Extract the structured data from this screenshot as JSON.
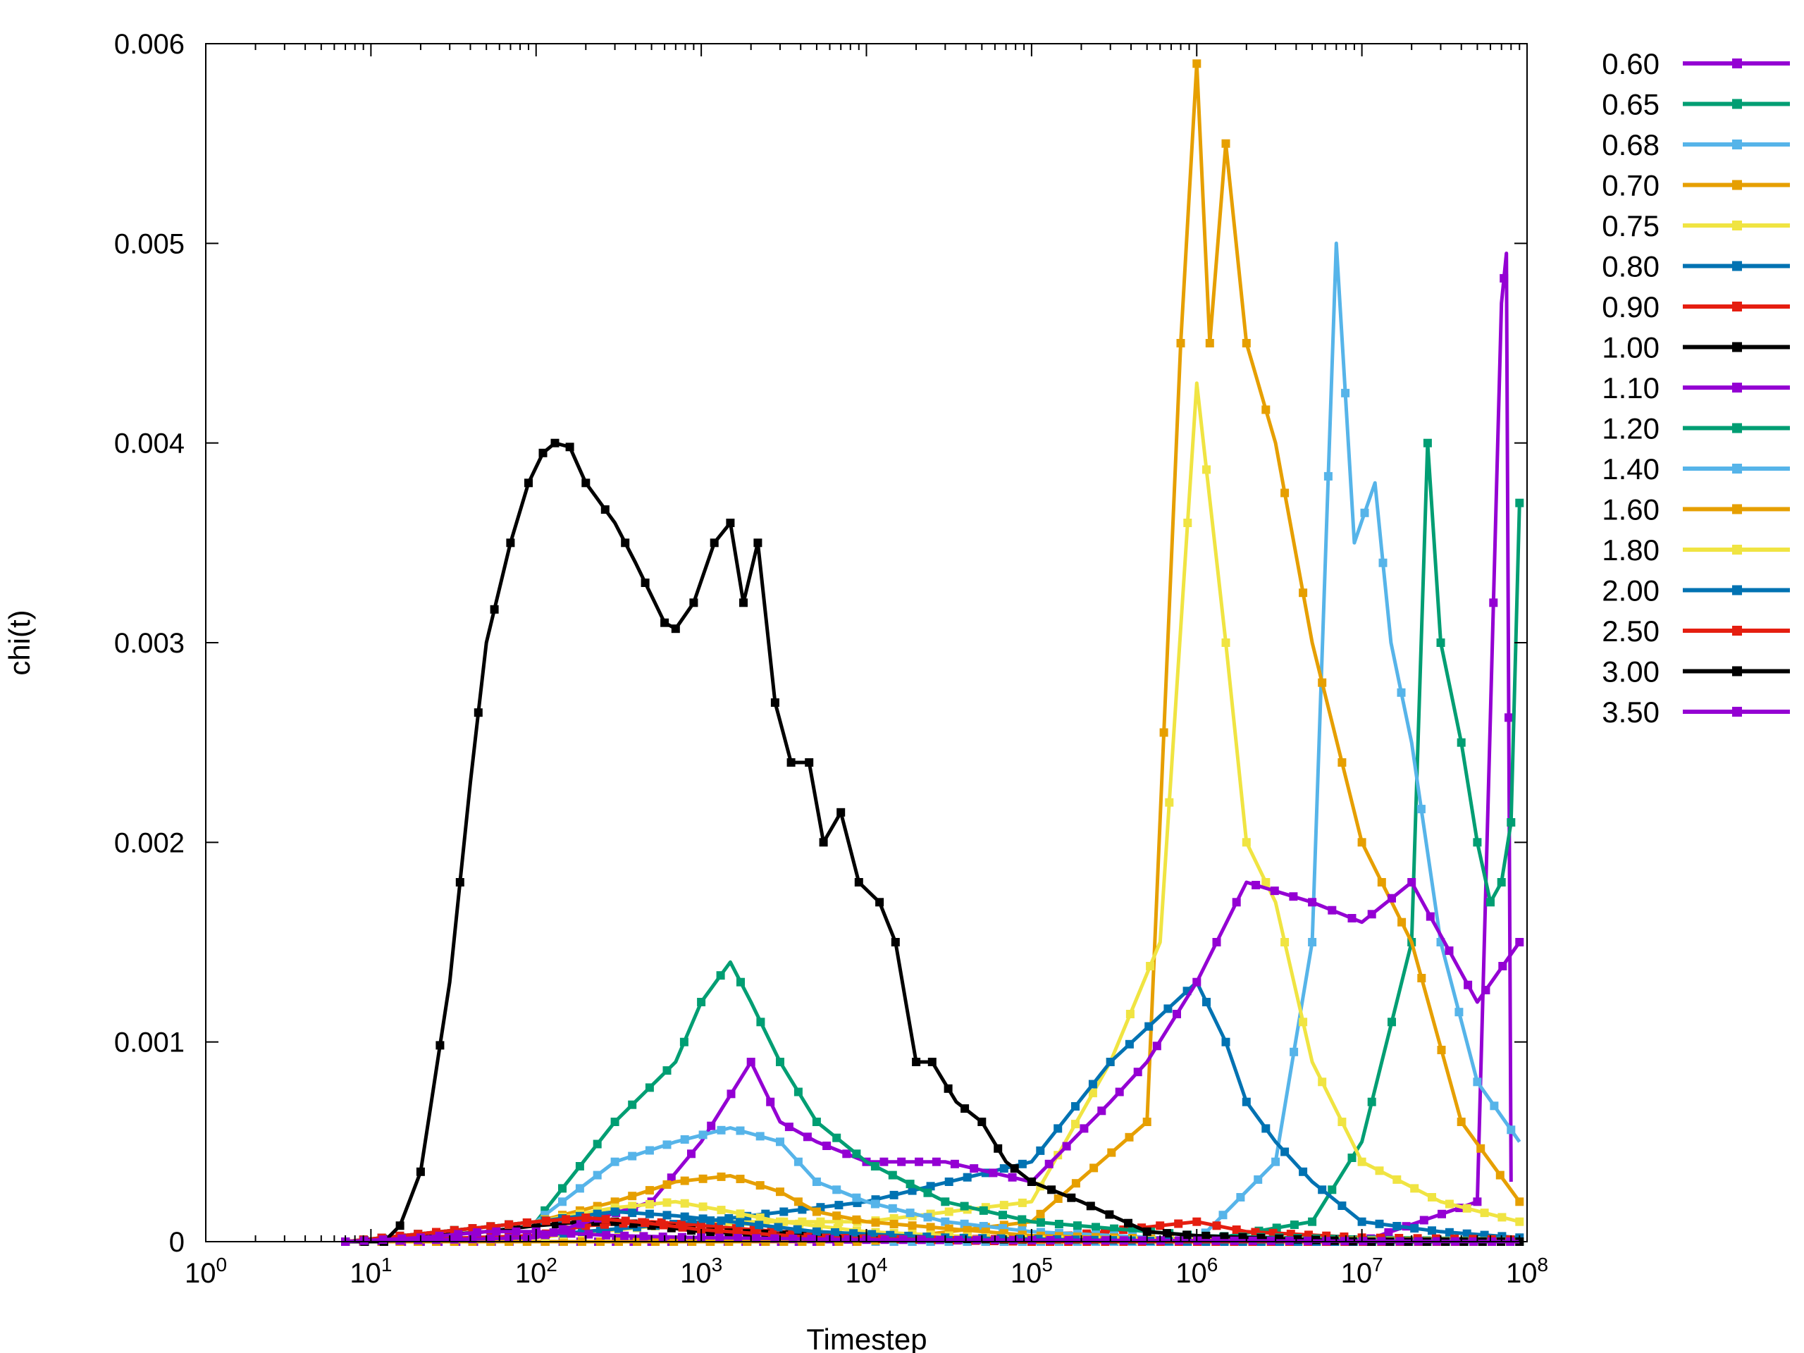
{
  "chart_data": {
    "type": "line",
    "xlabel": "Timestep",
    "ylabel": "chi(t)",
    "x_scale": "log",
    "xlim": [
      1,
      100000000
    ],
    "ylim": [
      0,
      0.006
    ],
    "x_ticks": [
      {
        "base": "10",
        "exp": "0"
      },
      {
        "base": "10",
        "exp": "1"
      },
      {
        "base": "10",
        "exp": "2"
      },
      {
        "base": "10",
        "exp": "3"
      },
      {
        "base": "10",
        "exp": "4"
      },
      {
        "base": "10",
        "exp": "5"
      },
      {
        "base": "10",
        "exp": "6"
      },
      {
        "base": "10",
        "exp": "7"
      },
      {
        "base": "10",
        "exp": "8"
      }
    ],
    "y_ticks": [
      "0",
      "0.001",
      "0.002",
      "0.003",
      "0.004",
      "0.005",
      "0.006"
    ],
    "grid": false,
    "legend_position": "outside-right",
    "series": [
      {
        "name": "0.60",
        "color": "#9400d3",
        "points": [
          [
            7,
            0
          ],
          [
            20,
            0
          ],
          [
            100,
            0
          ],
          [
            500,
            0
          ],
          [
            1000,
            0
          ],
          [
            5000,
            0
          ],
          [
            10000,
            0
          ],
          [
            100000,
            0
          ],
          [
            1000000,
            0
          ],
          [
            10000000,
            0
          ],
          [
            50000000,
            0.0002
          ],
          [
            70000000,
            0.0047
          ],
          [
            75000000,
            0.00495
          ],
          [
            80000000,
            0.0003
          ]
        ]
      },
      {
        "name": "0.65",
        "color": "#009e73",
        "points": [
          [
            7,
            0
          ],
          [
            100,
            0
          ],
          [
            1000,
            0
          ],
          [
            10000,
            0
          ],
          [
            100000,
            0
          ],
          [
            1000000,
            0
          ],
          [
            5000000,
            0.0001
          ],
          [
            10000000,
            0.0005
          ],
          [
            20000000,
            0.0015
          ],
          [
            25000000,
            0.004
          ],
          [
            30000000,
            0.003
          ],
          [
            40000000,
            0.0025
          ],
          [
            50000000,
            0.002
          ],
          [
            60000000,
            0.0017
          ],
          [
            70000000,
            0.0018
          ],
          [
            80000000,
            0.0021
          ],
          [
            90000000,
            0.0037
          ]
        ]
      },
      {
        "name": "0.68",
        "color": "#56b4e9",
        "points": [
          [
            7,
            0
          ],
          [
            100,
            0
          ],
          [
            1000,
            0
          ],
          [
            10000,
            0
          ],
          [
            100000,
            0
          ],
          [
            1000000,
            0
          ],
          [
            3000000,
            0.0004
          ],
          [
            5000000,
            0.0015
          ],
          [
            7000000,
            0.005
          ],
          [
            9000000,
            0.0035
          ],
          [
            12000000,
            0.0038
          ],
          [
            15000000,
            0.003
          ],
          [
            20000000,
            0.0025
          ],
          [
            30000000,
            0.0015
          ],
          [
            50000000,
            0.0008
          ],
          [
            90000000,
            0.0005
          ]
        ]
      },
      {
        "name": "0.70",
        "color": "#e69f00",
        "points": [
          [
            7,
            0
          ],
          [
            100,
            0
          ],
          [
            1000,
            0
          ],
          [
            10000,
            0
          ],
          [
            100000,
            0.0001
          ],
          [
            500000,
            0.0006
          ],
          [
            800000,
            0.0045
          ],
          [
            1000000,
            0.0059
          ],
          [
            1200000,
            0.0045
          ],
          [
            1500000,
            0.0055
          ],
          [
            2000000,
            0.0045
          ],
          [
            3000000,
            0.004
          ],
          [
            5000000,
            0.003
          ],
          [
            10000000,
            0.002
          ],
          [
            20000000,
            0.0015
          ],
          [
            40000000,
            0.0006
          ],
          [
            90000000,
            0.0002
          ]
        ]
      },
      {
        "name": "0.75",
        "color": "#f0e442",
        "points": [
          [
            7,
            0
          ],
          [
            100,
            2e-05
          ],
          [
            1000,
            0.0001
          ],
          [
            10000,
            0.0001
          ],
          [
            100000,
            0.0002
          ],
          [
            300000,
            0.0009
          ],
          [
            600000,
            0.0015
          ],
          [
            1000000,
            0.0043
          ],
          [
            1500000,
            0.003
          ],
          [
            2000000,
            0.002
          ],
          [
            3000000,
            0.0017
          ],
          [
            5000000,
            0.0009
          ],
          [
            10000000,
            0.0004
          ],
          [
            30000000,
            0.0002
          ],
          [
            90000000,
            0.0001
          ]
        ]
      },
      {
        "name": "0.80",
        "color": "#0072b2",
        "points": [
          [
            7,
            0
          ],
          [
            100,
            3e-05
          ],
          [
            1000,
            0.0001
          ],
          [
            10000,
            0.0002
          ],
          [
            100000,
            0.0004
          ],
          [
            300000,
            0.0009
          ],
          [
            1000000,
            0.0013
          ],
          [
            1500000,
            0.001
          ],
          [
            2000000,
            0.0007
          ],
          [
            3000000,
            0.0005
          ],
          [
            5000000,
            0.0003
          ],
          [
            10000000,
            0.0001
          ],
          [
            30000000,
            5e-05
          ],
          [
            90000000,
            2e-05
          ]
        ]
      },
      {
        "name": "0.90",
        "color": "#e51e10",
        "points": [
          [
            7,
            0
          ],
          [
            100,
            3e-05
          ],
          [
            200,
            8e-05
          ],
          [
            500,
            0.0001
          ],
          [
            1000,
            8e-05
          ],
          [
            3000,
            5e-05
          ],
          [
            10000,
            2e-05
          ],
          [
            100000,
            1e-05
          ],
          [
            1000000,
            0.0001
          ],
          [
            2000000,
            5e-05
          ],
          [
            10000000,
            2e-05
          ],
          [
            90000000,
            1e-05
          ]
        ]
      },
      {
        "name": "1.00",
        "color": "#000000",
        "points": [
          [
            7,
            0
          ],
          [
            50,
            5e-05
          ],
          [
            100,
            8e-05
          ],
          [
            200,
            0.0001
          ],
          [
            300,
            0.0001
          ],
          [
            500,
            8e-05
          ],
          [
            1000,
            5e-05
          ],
          [
            10000,
            2e-05
          ],
          [
            100000,
            1e-05
          ],
          [
            1000000,
            1e-05
          ],
          [
            10000000,
            0
          ],
          [
            90000000,
            0
          ]
        ]
      },
      {
        "name": "1.10",
        "color": "#9400d3",
        "points": [
          [
            7,
            0
          ],
          [
            100,
            2e-05
          ],
          [
            500,
            0.0002
          ],
          [
            1000,
            0.0005
          ],
          [
            2000,
            0.0009
          ],
          [
            3000,
            0.0006
          ],
          [
            5000,
            0.0005
          ],
          [
            10000,
            0.0004
          ],
          [
            30000,
            0.0004
          ],
          [
            100000,
            0.0003
          ],
          [
            300000,
            0.0007
          ],
          [
            500000,
            0.0009
          ],
          [
            1000000,
            0.0013
          ],
          [
            2000000,
            0.0018
          ],
          [
            5000000,
            0.0017
          ],
          [
            10000000,
            0.0016
          ],
          [
            20000000,
            0.0018
          ],
          [
            50000000,
            0.0012
          ],
          [
            90000000,
            0.0015
          ]
        ]
      },
      {
        "name": "1.20",
        "color": "#009e73",
        "points": [
          [
            7,
            0
          ],
          [
            100,
            0.0001
          ],
          [
            300,
            0.0006
          ],
          [
            700,
            0.0009
          ],
          [
            1000,
            0.0012
          ],
          [
            1500,
            0.0014
          ],
          [
            2000,
            0.0012
          ],
          [
            3000,
            0.0009
          ],
          [
            5000,
            0.0006
          ],
          [
            10000,
            0.0004
          ],
          [
            30000,
            0.0002
          ],
          [
            100000,
            0.0001
          ],
          [
            1000000,
            3e-05
          ],
          [
            10000000,
            1e-05
          ],
          [
            90000000,
            0
          ]
        ]
      },
      {
        "name": "1.40",
        "color": "#56b4e9",
        "points": [
          [
            7,
            0
          ],
          [
            100,
            0.0001
          ],
          [
            300,
            0.0004
          ],
          [
            700,
            0.0005
          ],
          [
            1500,
            0.00057
          ],
          [
            3000,
            0.0005
          ],
          [
            5000,
            0.0003
          ],
          [
            10000,
            0.0002
          ],
          [
            30000,
            0.0001
          ],
          [
            100000,
            5e-05
          ],
          [
            1000000,
            1e-05
          ],
          [
            90000000,
            0
          ]
        ]
      },
      {
        "name": "1.60",
        "color": "#e69f00",
        "points": [
          [
            7,
            0
          ],
          [
            100,
            0.0001
          ],
          [
            300,
            0.0002
          ],
          [
            700,
            0.0003
          ],
          [
            1500,
            0.00033
          ],
          [
            3000,
            0.00025
          ],
          [
            5000,
            0.00015
          ],
          [
            10000,
            0.0001
          ],
          [
            100000,
            3e-05
          ],
          [
            1000000,
            1e-05
          ],
          [
            90000000,
            0
          ]
        ]
      },
      {
        "name": "1.80",
        "color": "#f0e442",
        "points": [
          [
            7,
            0
          ],
          [
            100,
            0.0001
          ],
          [
            300,
            0.00017
          ],
          [
            700,
            0.0002
          ],
          [
            1500,
            0.00015
          ],
          [
            3000,
            0.0001
          ],
          [
            10000,
            5e-05
          ],
          [
            100000,
            1e-05
          ],
          [
            90000000,
            0
          ]
        ]
      },
      {
        "name": "2.00",
        "color": "#0072b2",
        "points": [
          [
            7,
            0
          ],
          [
            100,
            0.0001
          ],
          [
            300,
            0.00015
          ],
          [
            700,
            0.00013
          ],
          [
            1500,
            0.0001
          ],
          [
            5000,
            5e-05
          ],
          [
            30000,
            2e-05
          ],
          [
            1000000,
            0
          ],
          [
            90000000,
            0
          ]
        ]
      },
      {
        "name": "2.50",
        "color": "#e51e10",
        "points": [
          [
            7,
            0
          ],
          [
            100,
            0.0001
          ],
          [
            200,
            0.00012
          ],
          [
            400,
            0.0001
          ],
          [
            1000,
            6e-05
          ],
          [
            5000,
            2e-05
          ],
          [
            100000,
            0
          ],
          [
            90000000,
            0
          ]
        ]
      },
      {
        "name": "3.00",
        "color": "#000000",
        "points": [
          [
            7,
            0
          ],
          [
            12,
            0
          ],
          [
            15,
            8e-05
          ],
          [
            20,
            0.00035
          ],
          [
            30,
            0.0013
          ],
          [
            40,
            0.0023
          ],
          [
            50,
            0.003
          ],
          [
            70,
            0.0035
          ],
          [
            90,
            0.0038
          ],
          [
            110,
            0.00395
          ],
          [
            130,
            0.004
          ],
          [
            160,
            0.00398
          ],
          [
            200,
            0.0038
          ],
          [
            300,
            0.0036
          ],
          [
            400,
            0.0034
          ],
          [
            600,
            0.0031
          ],
          [
            700,
            0.00307
          ],
          [
            900,
            0.0032
          ],
          [
            1200,
            0.0035
          ],
          [
            1500,
            0.0036
          ],
          [
            1800,
            0.0032
          ],
          [
            2200,
            0.0035
          ],
          [
            2800,
            0.0027
          ],
          [
            3500,
            0.0024
          ],
          [
            4500,
            0.0024
          ],
          [
            5500,
            0.002
          ],
          [
            7000,
            0.00215
          ],
          [
            9000,
            0.0018
          ],
          [
            12000,
            0.0017
          ],
          [
            15000,
            0.0015
          ],
          [
            20000,
            0.0009
          ],
          [
            25000,
            0.0009
          ],
          [
            35000,
            0.0007
          ],
          [
            50000,
            0.0006
          ],
          [
            70000,
            0.0004
          ],
          [
            100000,
            0.0003
          ],
          [
            200000,
            0.0002
          ],
          [
            500000,
            5e-05
          ],
          [
            1000000,
            3e-05
          ],
          [
            10000000,
            0
          ],
          [
            90000000,
            0
          ]
        ]
      },
      {
        "name": "3.50",
        "color": "#9400d3",
        "points": [
          [
            7,
            0
          ],
          [
            20,
            2e-05
          ],
          [
            50,
            5e-05
          ],
          [
            100,
            5e-05
          ],
          [
            300,
            3e-05
          ],
          [
            1000,
            2e-05
          ],
          [
            10000,
            1e-05
          ],
          [
            90000000,
            0
          ]
        ]
      }
    ]
  }
}
